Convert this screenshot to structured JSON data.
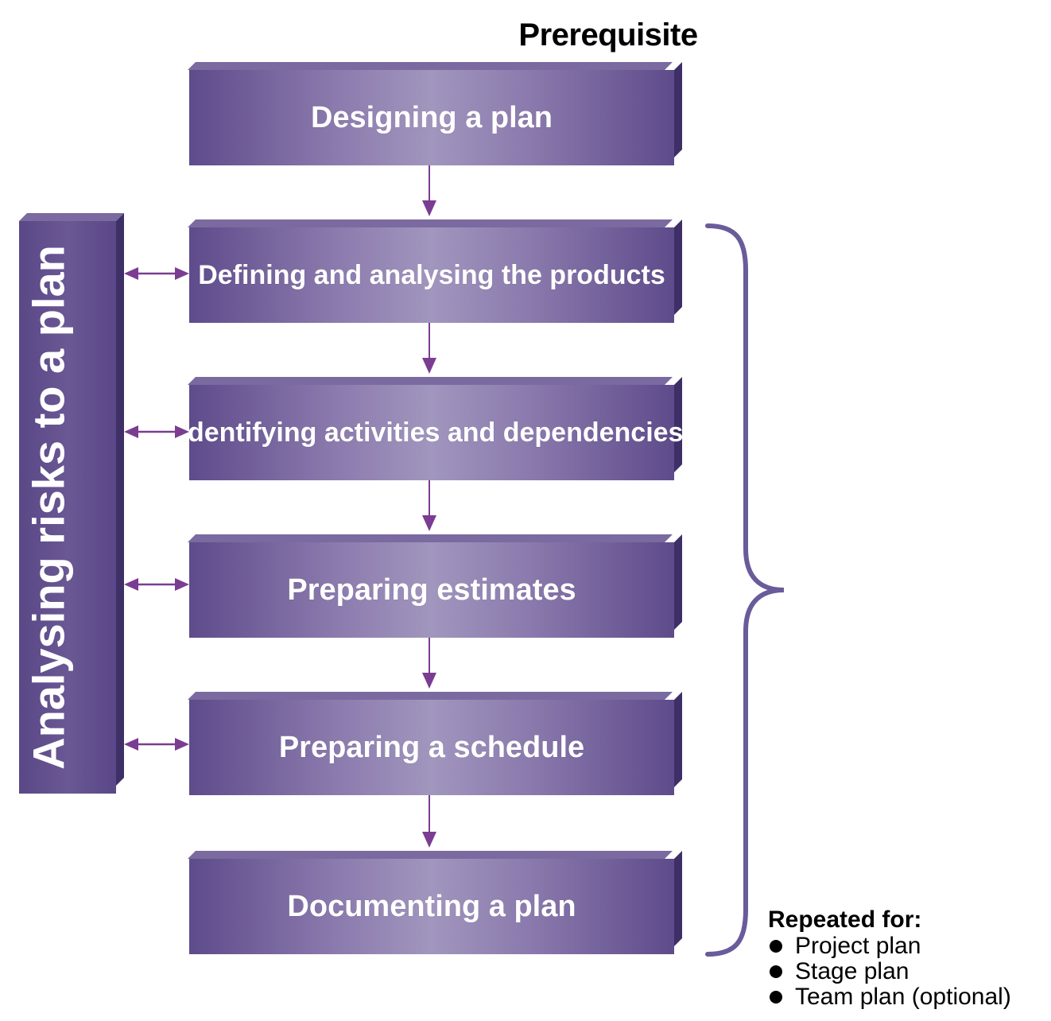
{
  "title": "Prerequisite",
  "main_steps": [
    "Designing a plan",
    "Defining and analysing the products",
    "Identifying activities and dependencies",
    "Preparing estimates",
    "Preparing a schedule",
    "Documenting a plan"
  ],
  "side_process": "Analysing risks to a plan",
  "repeated": {
    "heading": "Repeated for:",
    "items": [
      "Project plan",
      "Stage plan",
      "Team plan (optional)"
    ]
  },
  "colors": {
    "block": "#5e4b8b",
    "arrow": "#7a3d91",
    "brace": "#6a5b9a"
  }
}
